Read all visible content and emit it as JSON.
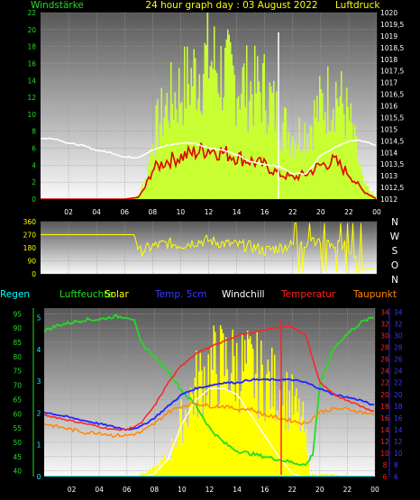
{
  "title": "24 hour graph day : 03 August 2022",
  "colors": {
    "wind_gust": "#c8ff32",
    "wind_avg": "#e00000",
    "pressure": "#ffffff",
    "direction": "#ffff00",
    "humidity": "#22dd22",
    "solar": "#ffff00",
    "temp5cm": "#2222ff",
    "windchill": "#ffffff",
    "temperature": "#ff2222",
    "dewpoint": "#ff8800",
    "rain": "#00ffff"
  },
  "chart_data": [
    {
      "type": "bar",
      "labels": {
        "left": "Windstärke",
        "right": "Luftdruck"
      },
      "x_ticks": [
        "02",
        "04",
        "06",
        "08",
        "10",
        "12",
        "14",
        "16",
        "22",
        "20",
        "22",
        "00"
      ],
      "y_left_ticks": [
        "0",
        "2",
        "4",
        "6",
        "8",
        "10",
        "12",
        "14",
        "16",
        "18",
        "20",
        "22"
      ],
      "y_right_ticks": [
        "1012",
        "1012,5",
        "1013",
        "1013,5",
        "1014",
        "1014,5",
        "1015",
        "1015,5",
        "1016",
        "1016,5",
        "1017",
        "1017,5",
        "1018",
        "1018,5",
        "1019",
        "1019,5",
        "1020"
      ],
      "ylim_left": [
        0,
        22
      ],
      "ylim_right": [
        1012,
        1020
      ],
      "series": [
        {
          "name": "gust",
          "axis": "left",
          "x": [
            0,
            2,
            4,
            6,
            7,
            7.5,
            8,
            9,
            10,
            11,
            12,
            13,
            14,
            15,
            16,
            17,
            18,
            19,
            20,
            21,
            22,
            23,
            24
          ],
          "values": [
            0,
            0,
            0,
            0,
            0.5,
            3,
            8,
            12,
            14,
            16,
            18,
            16,
            15,
            14,
            14,
            10,
            8,
            9,
            12,
            14,
            10,
            2,
            0
          ]
        },
        {
          "name": "average",
          "axis": "left",
          "x": [
            0,
            2,
            4,
            6,
            7,
            7.5,
            8,
            9,
            10,
            11,
            12,
            13,
            14,
            15,
            16,
            17,
            18,
            19,
            20,
            21,
            22,
            23,
            24
          ],
          "values": [
            0,
            0,
            0,
            0,
            0.2,
            1.5,
            3.5,
            4.5,
            5,
            5.5,
            6,
            5.5,
            5,
            4.5,
            4,
            3,
            2.5,
            3,
            4,
            4.5,
            3,
            1,
            0
          ]
        },
        {
          "name": "pressure",
          "axis": "right",
          "x": [
            0,
            1,
            2,
            3,
            4,
            5,
            6,
            7,
            8,
            9,
            10,
            11,
            12,
            13,
            14,
            15,
            16,
            17,
            18,
            19,
            20,
            21,
            22,
            23,
            24
          ],
          "values": [
            1014.6,
            1014.6,
            1014.4,
            1014.3,
            1014.1,
            1014,
            1013.8,
            1013.8,
            1014.1,
            1014.3,
            1014.4,
            1014.4,
            1014.2,
            1014.1,
            1013.9,
            1013.6,
            1013.5,
            1013.4,
            1013.1,
            1013.1,
            1013.9,
            1014.2,
            1014.5,
            1014.5,
            1014.3
          ]
        }
      ]
    },
    {
      "type": "line",
      "labels": {
        "right": [
          "N",
          "W",
          "S",
          "O",
          "N"
        ]
      },
      "y_ticks": [
        "0",
        "90",
        "180",
        "270",
        "360"
      ],
      "ylim": [
        0,
        360
      ],
      "series": [
        {
          "name": "direction",
          "x": [
            0,
            1,
            2,
            3,
            4,
            5,
            6,
            6.7,
            7,
            8,
            9,
            10,
            11,
            12,
            13,
            14,
            15,
            16,
            17,
            18,
            19,
            20,
            21,
            22,
            23,
            24
          ],
          "values": [
            270,
            270,
            270,
            270,
            270,
            270,
            270,
            270,
            150,
            190,
            210,
            200,
            220,
            230,
            210,
            200,
            190,
            160,
            180,
            200,
            220,
            230,
            200,
            190,
            40,
            40
          ]
        }
      ]
    },
    {
      "type": "line",
      "labels": {
        "rain": "Regen",
        "humidity": "Luftfeuchte",
        "solar": "Solar",
        "temp5cm": "Temp. 5cm",
        "windchill": "Windchill",
        "temperature": "Temperatur",
        "dewpoint": "Taupunkt"
      },
      "y_left_ticks": [
        "40",
        "45",
        "50",
        "55",
        "60",
        "65",
        "70",
        "75",
        "80",
        "85",
        "90",
        "95"
      ],
      "y_rain_ticks": [
        "0",
        "1",
        "2",
        "3",
        "4",
        "5"
      ],
      "y_right_ticks": [
        "6",
        "8",
        "10",
        "12",
        "14",
        "16",
        "18",
        "20",
        "22",
        "24",
        "26",
        "28",
        "30",
        "32",
        "34"
      ],
      "x_ticks": [
        "02",
        "04",
        "06",
        "08",
        "10",
        "12",
        "14",
        "16",
        "22",
        "20",
        "22",
        "00"
      ],
      "ylim_humidity": [
        38,
        97
      ],
      "ylim_temp": [
        6,
        34.7
      ],
      "series": [
        {
          "name": "humidity",
          "x": [
            0,
            1,
            2,
            3,
            4,
            5,
            6,
            6.5,
            7,
            8,
            9,
            10,
            11,
            12,
            13,
            14,
            15,
            16,
            17,
            18,
            19,
            19.5,
            20,
            21,
            22,
            23,
            24
          ],
          "values": [
            89,
            91,
            92,
            93,
            93,
            94,
            94,
            93,
            85,
            80,
            75,
            68,
            63,
            55,
            50,
            47,
            46,
            45,
            44,
            43,
            42,
            46,
            70,
            83,
            88,
            92,
            94
          ]
        },
        {
          "name": "solar",
          "x": [
            0,
            6.5,
            7,
            8,
            9,
            10,
            11,
            12,
            13,
            14,
            15,
            16,
            17,
            18,
            18.8,
            19.2,
            24
          ],
          "values": [
            0,
            0,
            0.1,
            0.3,
            0.8,
            2.3,
            3.6,
            4.2,
            4.4,
            4.3,
            4.1,
            3.8,
            3.4,
            2.8,
            2.0,
            0.1,
            0
          ]
        },
        {
          "name": "windchill",
          "x": [
            0,
            6,
            7,
            8,
            9,
            10,
            11,
            12,
            13,
            14,
            15,
            16,
            17,
            18,
            19,
            24
          ],
          "values": [
            6,
            6,
            6,
            6.5,
            9,
            15,
            19,
            21,
            21,
            20,
            16.5,
            13,
            9.5,
            6.5,
            6,
            6
          ]
        },
        {
          "name": "temp5cm",
          "x": [
            0,
            1,
            2,
            3,
            4,
            5,
            6,
            7,
            8,
            9,
            10,
            11,
            12,
            13,
            14,
            15,
            16,
            17,
            18,
            19,
            20,
            21,
            22,
            23,
            24
          ],
          "values": [
            17,
            16.5,
            16,
            15.5,
            15,
            14.5,
            14,
            14.5,
            16,
            18,
            20,
            21,
            21.5,
            22,
            22,
            22.5,
            22.5,
            22.5,
            22.5,
            22,
            21,
            20,
            19.5,
            19,
            18
          ]
        },
        {
          "name": "temperature",
          "x": [
            0,
            1,
            2,
            3,
            4,
            5,
            6,
            7,
            8,
            9,
            10,
            11,
            12,
            13,
            14,
            15,
            16,
            17,
            18,
            19,
            20,
            21,
            22,
            23,
            24
          ],
          "values": [
            16.5,
            16,
            15.5,
            15,
            14.5,
            14,
            14,
            15,
            18,
            22,
            25,
            27,
            28,
            29,
            30,
            30.5,
            31,
            31.5,
            31.5,
            30,
            22,
            20,
            19,
            18,
            17
          ]
        },
        {
          "name": "dewpoint",
          "x": [
            0,
            1,
            2,
            3,
            4,
            5,
            6,
            7,
            8,
            9,
            10,
            11,
            12,
            13,
            14,
            15,
            16,
            17,
            18,
            19,
            20,
            21,
            22,
            23,
            24
          ],
          "values": [
            15,
            14.5,
            14,
            13.5,
            13.5,
            13,
            13,
            13.5,
            15,
            17,
            18,
            18.5,
            18,
            18,
            17.5,
            17.5,
            16.5,
            16,
            15.5,
            15,
            17,
            17.5,
            17.5,
            17,
            16.5
          ]
        },
        {
          "name": "rain",
          "x": [
            0,
            24
          ],
          "values": [
            0,
            0
          ]
        }
      ]
    }
  ]
}
